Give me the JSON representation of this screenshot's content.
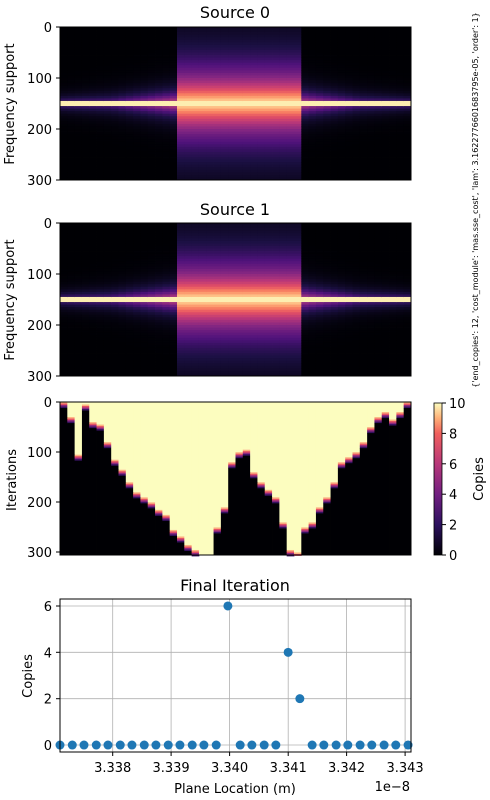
{
  "side_note": "{'end_copies': 12, 'cost_module': 'mas.sse_cost', 'lam': 3.1622776601683795e-05, 'order': 1}",
  "chart_data": [
    {
      "type": "heatmap",
      "title": "Source 0",
      "ylabel": "Frequency support",
      "ylim": [
        300,
        0
      ],
      "yticks": [
        "0",
        "100",
        "200",
        "300"
      ],
      "colormap": "magma",
      "columns": 48,
      "peak_row": 150,
      "bright_center_columns": [
        16,
        32
      ]
    },
    {
      "type": "heatmap",
      "title": "Source 1",
      "ylabel": "Frequency support",
      "ylim": [
        300,
        0
      ],
      "yticks": [
        "0",
        "100",
        "200",
        "300"
      ],
      "colormap": "magma",
      "columns": 48,
      "peak_row": 150,
      "bright_center_columns": [
        16,
        32
      ]
    },
    {
      "type": "heatmap",
      "title": "",
      "ylabel": "Iterations",
      "ylim": [
        305,
        0
      ],
      "yticks": [
        "0",
        "100",
        "200",
        "300"
      ],
      "colormap": "magma",
      "colorbar": {
        "label": "Copies",
        "range": [
          0,
          10
        ],
        "ticks": [
          "0",
          "2",
          "4",
          "6",
          "8",
          "10"
        ]
      },
      "columns": 48,
      "fill_start_iteration": [
        0,
        30,
        105,
        5,
        40,
        45,
        80,
        115,
        135,
        160,
        180,
        190,
        200,
        215,
        225,
        255,
        268,
        285,
        295,
        305,
        310,
        250,
        210,
        120,
        100,
        95,
        140,
        160,
        175,
        190,
        240,
        295,
        300,
        250,
        240,
        210,
        190,
        160,
        120,
        110,
        100,
        80,
        50,
        30,
        20,
        35,
        20,
        0
      ],
      "fill_value": 10,
      "empty_value": 0
    },
    {
      "type": "scatter",
      "title": "Final Iteration",
      "xlabel": "Plane Location (m)",
      "ylabel": "Copies",
      "x_offset_label": "1e−8",
      "xlim": [
        3.3371,
        3.3431
      ],
      "ylim": [
        -0.3,
        6.3
      ],
      "xticks": [
        "3.338",
        "3.339",
        "3.340",
        "3.341",
        "3.342",
        "3.343"
      ],
      "yticks": [
        "0",
        "2",
        "4",
        "6"
      ],
      "grid": true,
      "color": "#1f77b4",
      "x": [
        3.3371,
        3.33731,
        3.33751,
        3.33772,
        3.33792,
        3.33813,
        3.33833,
        3.33854,
        3.33874,
        3.33895,
        3.33915,
        3.33936,
        3.33956,
        3.33977,
        3.33997,
        3.34018,
        3.34038,
        3.34059,
        3.34079,
        3.341,
        3.3412,
        3.34141,
        3.34161,
        3.34182,
        3.34202,
        3.34223,
        3.34243,
        3.34264,
        3.34284,
        3.34305
      ],
      "y": [
        0,
        0,
        0,
        0,
        0,
        0,
        0,
        0,
        0,
        0,
        0,
        0,
        0,
        0,
        6,
        0,
        0,
        0,
        0,
        4,
        2,
        0,
        0,
        0,
        0,
        0,
        0,
        0,
        0,
        0
      ]
    }
  ]
}
